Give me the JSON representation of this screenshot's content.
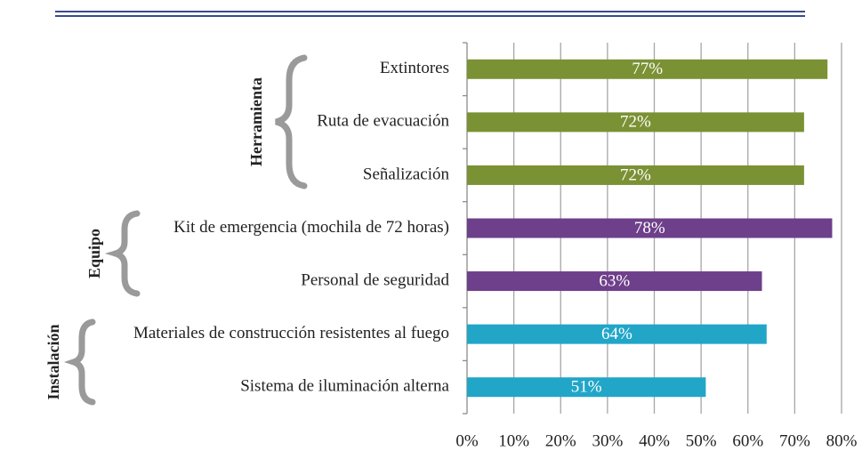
{
  "chart_data": {
    "type": "barh",
    "categories": [
      "Extintores",
      "Ruta de evacuación",
      "Señalización",
      "Kit de emergencia (mochila de 72 horas)",
      "Personal de seguridad",
      "Materiales de construcción resistentes  al fuego",
      "Sistema de iluminación alterna"
    ],
    "values": [
      77,
      72,
      72,
      78,
      63,
      64,
      51
    ],
    "value_labels": [
      "77%",
      "72%",
      "72%",
      "78%",
      "63%",
      "64%",
      "51%"
    ],
    "colors": [
      "#7a9134",
      "#7a9134",
      "#7a9134",
      "#6e3f8a",
      "#6e3f8a",
      "#21a6c8",
      "#21a6c8"
    ],
    "groups": [
      "Herramienta",
      "Equipo",
      "Instalación"
    ],
    "xlim": [
      0,
      80
    ],
    "xticks": [
      {
        "value": 0,
        "label": "0%"
      },
      {
        "value": 10,
        "label": "10%"
      },
      {
        "value": 20,
        "label": "20%"
      },
      {
        "value": 30,
        "label": "30%"
      },
      {
        "value": 40,
        "label": "40%"
      },
      {
        "value": 50,
        "label": "50%"
      },
      {
        "value": 60,
        "label": "60%"
      },
      {
        "value": 70,
        "label": "70%"
      },
      {
        "value": 80,
        "label": "80%"
      }
    ],
    "grid": true
  }
}
